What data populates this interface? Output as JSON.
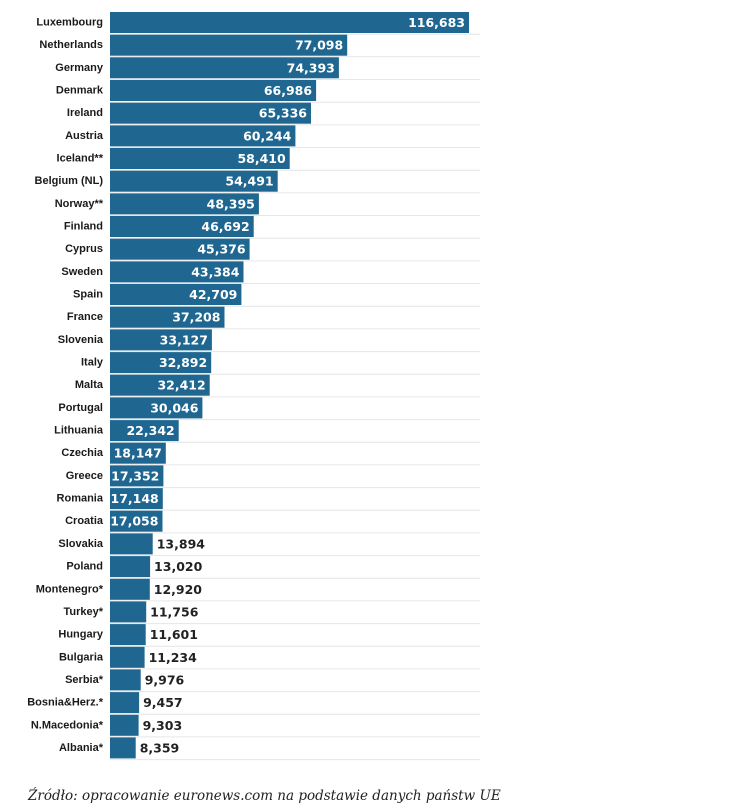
{
  "chart_data": {
    "type": "bar",
    "orientation": "horizontal",
    "categories": [
      "Luxembourg",
      "Netherlands",
      "Germany",
      "Denmark",
      "Ireland",
      "Austria",
      "Iceland**",
      "Belgium (NL)",
      "Norway**",
      "Finland",
      "Cyprus",
      "Sweden",
      "Spain",
      "France",
      "Slovenia",
      "Italy",
      "Malta",
      "Portugal",
      "Lithuania",
      "Czechia",
      "Greece",
      "Romania",
      "Croatia",
      "Slovakia",
      "Poland",
      "Montenegro*",
      "Turkey*",
      "Hungary",
      "Bulgaria",
      "Serbia*",
      "Bosnia&Herz.*",
      "N.Macedonia*",
      "Albania*"
    ],
    "values": [
      116683,
      77098,
      74393,
      66986,
      65336,
      60244,
      58410,
      54491,
      48395,
      46692,
      45376,
      43384,
      42709,
      37208,
      33127,
      32892,
      32412,
      30046,
      22342,
      18147,
      17352,
      17148,
      17058,
      13894,
      13020,
      12920,
      11756,
      11601,
      11234,
      9976,
      9457,
      9303,
      8359
    ],
    "value_labels": [
      "116,683",
      "77,098",
      "74,393",
      "66,986",
      "65,336",
      "60,244",
      "58,410",
      "54,491",
      "48,395",
      "46,692",
      "45,376",
      "43,384",
      "42,709",
      "37,208",
      "33,127",
      "32,892",
      "32,412",
      "30,046",
      "22,342",
      "18,147",
      "17,352",
      "17,148",
      "17,058",
      "13,894",
      "13,020",
      "12,920",
      "11,756",
      "11,601",
      "11,234",
      "9,976",
      "9,457",
      "9,303",
      "8,359"
    ],
    "title": "",
    "xlabel": "",
    "ylabel": "",
    "xlim": [
      0,
      116683
    ],
    "grid": true,
    "legend": "none",
    "bar_color": "#1f6791",
    "label_color_inside": "#ffffff",
    "label_color_outside": "#222222"
  },
  "footer": {
    "source": "Źródło: opracowanie euronews.com na podstawie danych państw UE"
  }
}
